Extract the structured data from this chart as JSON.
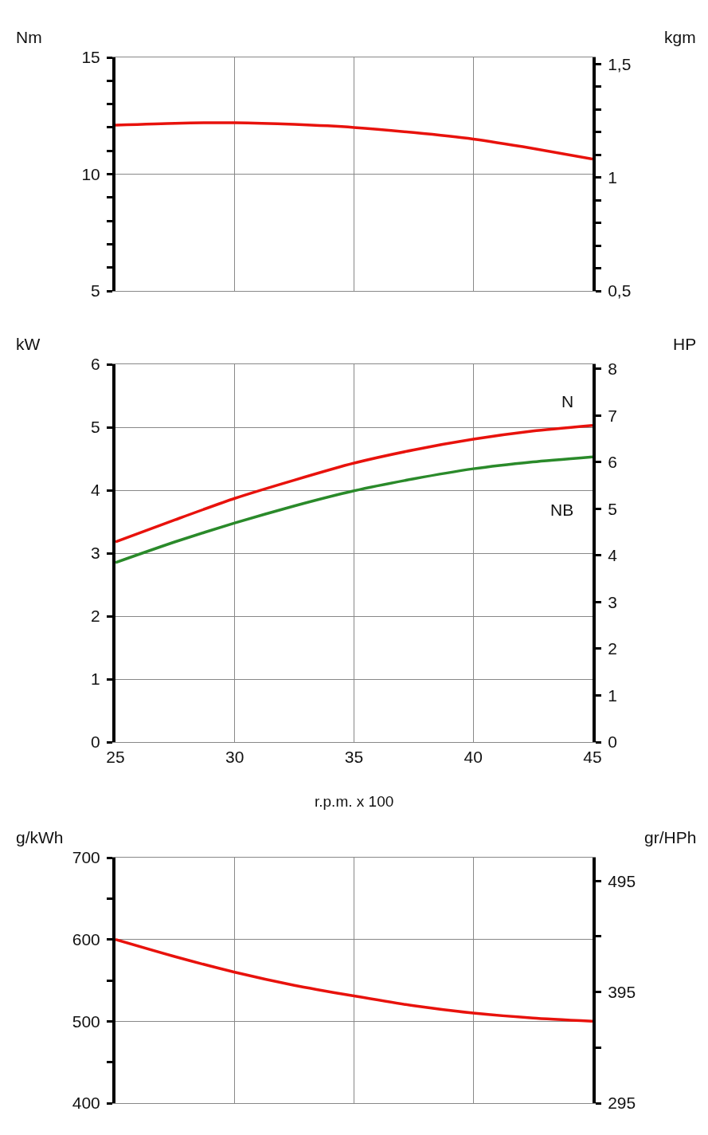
{
  "chart_data": [
    {
      "type": "line",
      "ylabel": "Nm",
      "y2label": "kgm",
      "x": [
        25,
        27.5,
        30,
        32.5,
        35,
        37.5,
        40,
        42.5,
        45
      ],
      "xlim": [
        25,
        45
      ],
      "xticks": [
        25,
        30,
        35,
        40,
        45
      ],
      "ylim": [
        5,
        15
      ],
      "yticks": [
        5,
        {
          "value": 6,
          "label": null
        },
        {
          "value": 7,
          "label": null
        },
        {
          "value": 8,
          "label": null
        },
        {
          "value": 9,
          "label": null
        },
        10,
        {
          "value": 11,
          "label": null
        },
        {
          "value": 12,
          "label": null
        },
        {
          "value": 13,
          "label": null
        },
        {
          "value": 14,
          "label": null
        },
        15
      ],
      "y2lim": [
        0.5,
        1.53
      ],
      "y2ticks": [
        {
          "value": 0.5,
          "label": "0,5"
        },
        {
          "value": 0.6,
          "label": null
        },
        {
          "value": 0.7,
          "label": null
        },
        {
          "value": 0.8,
          "label": null
        },
        {
          "value": 0.9,
          "label": null
        },
        1,
        {
          "value": 1.1,
          "label": null
        },
        {
          "value": 1.2,
          "label": null
        },
        {
          "value": 1.3,
          "label": null
        },
        {
          "value": 1.4,
          "label": null
        },
        {
          "value": 1.5,
          "label": "1,5"
        }
      ],
      "series": [
        {
          "color": "#e8120c",
          "values": [
            12.1,
            12.18,
            12.2,
            12.13,
            12.0,
            11.78,
            11.5,
            11.1,
            10.65
          ]
        }
      ],
      "grid": true,
      "legend": false,
      "tick_labels": "y",
      "marker": "none",
      "line_style": "solid"
    },
    {
      "type": "line",
      "ylabel": "kW",
      "y2label": "HP",
      "xlabel": "r.p.m. x 100",
      "x": [
        25,
        27.5,
        30,
        32.5,
        35,
        37.5,
        40,
        42.5,
        45
      ],
      "xlim": [
        25,
        45
      ],
      "xticks": [
        25,
        30,
        35,
        40,
        45
      ],
      "ylim": [
        0,
        6
      ],
      "yticks": [
        0,
        1,
        2,
        3,
        4,
        5,
        6
      ],
      "y2lim": [
        0,
        8.1
      ],
      "y2ticks": [
        0,
        1,
        2,
        3,
        4,
        5,
        6,
        7,
        8
      ],
      "series": [
        {
          "name": "N",
          "color": "#e8120c",
          "values": [
            3.18,
            3.53,
            3.87,
            4.16,
            4.43,
            4.64,
            4.81,
            4.94,
            5.03
          ]
        },
        {
          "name": "NB",
          "color": "#2a8a2a",
          "values": [
            2.85,
            3.18,
            3.48,
            3.75,
            3.99,
            4.18,
            4.34,
            4.45,
            4.53
          ]
        }
      ],
      "grid": true,
      "legend": false,
      "marker": "none",
      "line_style": "solid"
    },
    {
      "type": "line",
      "ylabel": "g/kWh",
      "y2label": "gr/HPh",
      "x": [
        25,
        27.5,
        30,
        32.5,
        35,
        37.5,
        40,
        42.5,
        45
      ],
      "xlim": [
        25,
        45
      ],
      "xticks": [
        25,
        30,
        35,
        40,
        45
      ],
      "ylim": [
        400,
        700
      ],
      "yticks": [
        400,
        {
          "value": 450,
          "label": null
        },
        500,
        {
          "value": 550,
          "label": null
        },
        600,
        {
          "value": 650,
          "label": null
        },
        700
      ],
      "y2lim": [
        295,
        516
      ],
      "y2ticks": [
        295,
        {
          "value": 345,
          "label": null
        },
        395,
        {
          "value": 445,
          "label": null
        },
        495
      ],
      "series": [
        {
          "color": "#e8120c",
          "values": [
            600,
            579,
            560,
            544,
            531,
            519,
            510,
            504,
            500
          ]
        }
      ],
      "grid": true,
      "legend": false,
      "tick_labels": "y",
      "marker": "none",
      "line_style": "solid"
    }
  ]
}
